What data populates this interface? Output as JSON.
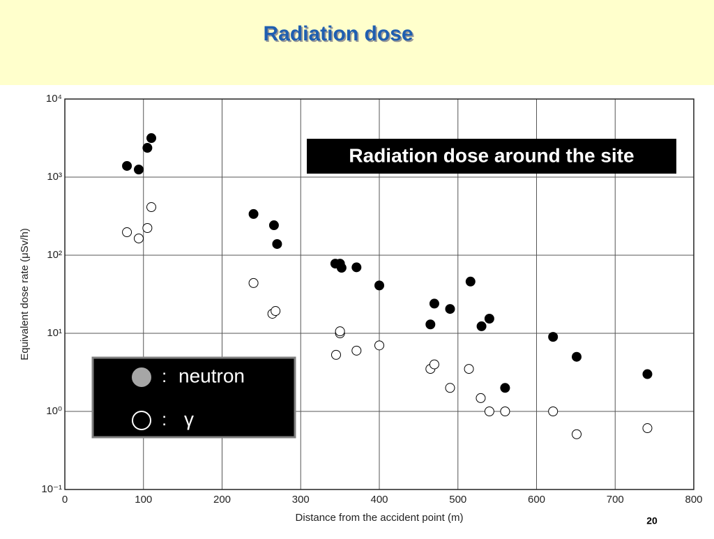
{
  "slide": {
    "title": "Radiation dose",
    "page_number": "20"
  },
  "chart_data": {
    "type": "scatter",
    "annotation": "Radiation dose around the site",
    "x_label": "Distance from the accident point (m)",
    "y_label": "Equivalent dose rate (μSv/h)",
    "xlim": [
      0,
      800
    ],
    "xticks": [
      0,
      100,
      200,
      300,
      400,
      500,
      600,
      700,
      800
    ],
    "ylim": [
      0.1,
      10000
    ],
    "log_y": true,
    "yticks": [
      {
        "value": 0.1,
        "label": "10⁻¹"
      },
      {
        "value": 1,
        "label": "10⁰"
      },
      {
        "value": 10,
        "label": "10¹"
      },
      {
        "value": 100,
        "label": "10²"
      },
      {
        "value": 1000,
        "label": "10³"
      },
      {
        "value": 10000,
        "label": "10⁴"
      }
    ],
    "grid": true,
    "legend_position": "lower left",
    "legend_separator": ":",
    "series": [
      {
        "name": "neutron",
        "color": "#000000",
        "filled": true,
        "legend_color": "#a6a6a6",
        "x": [
          79,
          94,
          105,
          110,
          240,
          266,
          270,
          344,
          350,
          352,
          371,
          400,
          465,
          470,
          490,
          516,
          530,
          540,
          560,
          621,
          651,
          741
        ],
        "values": [
          1390,
          1250,
          2370,
          3160,
          337,
          242,
          139,
          78,
          78,
          69,
          70,
          41,
          13,
          24,
          20.5,
          46,
          12.3,
          15.4,
          2.0,
          9,
          5,
          3.0
        ]
      },
      {
        "name": "γ",
        "color": "#000000",
        "filled": false,
        "legend_color": "#ffffff",
        "x": [
          79,
          94,
          105,
          110,
          240,
          264,
          268,
          345,
          350,
          350,
          371,
          400,
          465,
          470,
          490,
          514,
          529,
          540,
          560,
          621,
          651,
          741
        ],
        "values": [
          197,
          164,
          223,
          413,
          44,
          17.8,
          19.3,
          5.3,
          10,
          10.6,
          6.0,
          7.0,
          3.5,
          4.0,
          2.0,
          3.5,
          1.48,
          1.0,
          1.0,
          1.0,
          0.51,
          0.61
        ]
      }
    ]
  }
}
